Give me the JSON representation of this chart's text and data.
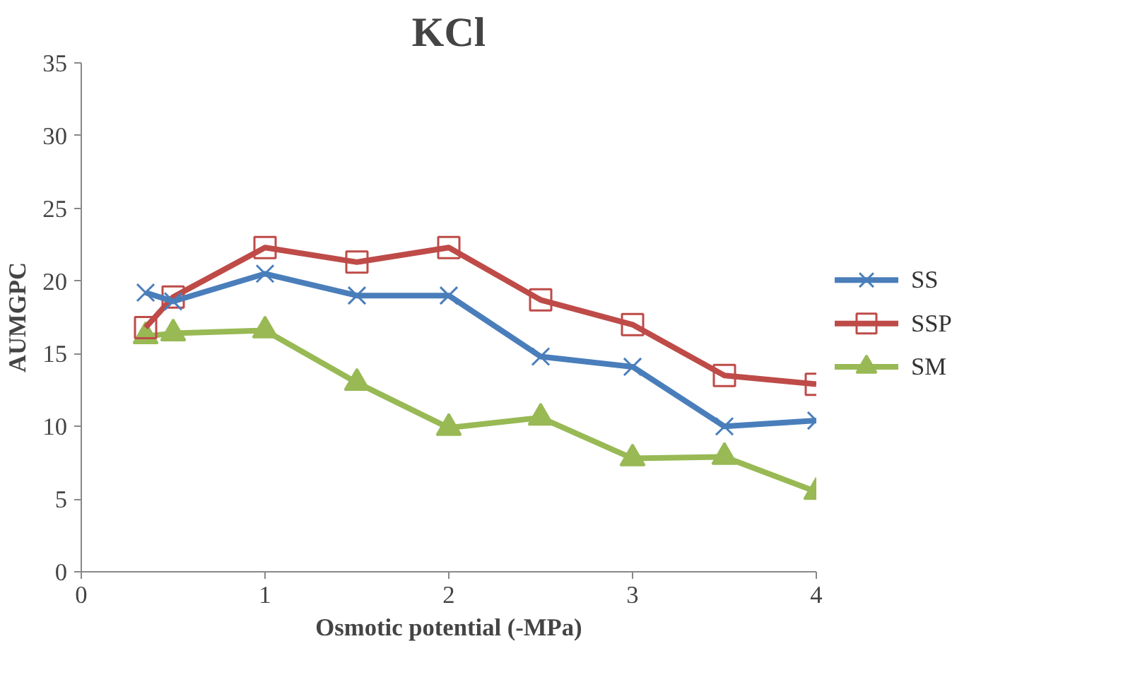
{
  "chart_data": {
    "type": "line",
    "title": "KCl",
    "xlabel": "Osmotic potential (-MPa)",
    "ylabel": "AUMGPC",
    "x": [
      0.35,
      0.5,
      1,
      1.5,
      2,
      2.5,
      3,
      3.5,
      4
    ],
    "series": [
      {
        "name": "SS",
        "color": "#4a7ebb",
        "marker": "cross",
        "values": [
          19.2,
          18.6,
          20.5,
          19.0,
          19.0,
          14.8,
          14.1,
          10.0,
          10.4
        ]
      },
      {
        "name": "SSP",
        "color": "#be4b48",
        "marker": "square",
        "values": [
          16.8,
          18.9,
          22.3,
          21.3,
          22.3,
          18.7,
          17.0,
          13.5,
          12.9
        ]
      },
      {
        "name": "SM",
        "color": "#98b954",
        "marker": "triangle",
        "values": [
          16.2,
          16.4,
          16.6,
          13.0,
          9.9,
          10.6,
          7.8,
          7.9,
          5.5
        ]
      }
    ],
    "xlim": [
      0,
      4
    ],
    "ylim": [
      0,
      35
    ],
    "xticks": [
      0,
      1,
      2,
      3,
      4
    ],
    "yticks": [
      0,
      5,
      10,
      15,
      20,
      25,
      30,
      35
    ],
    "grid": false,
    "legend": "right",
    "line_style": "solid"
  }
}
